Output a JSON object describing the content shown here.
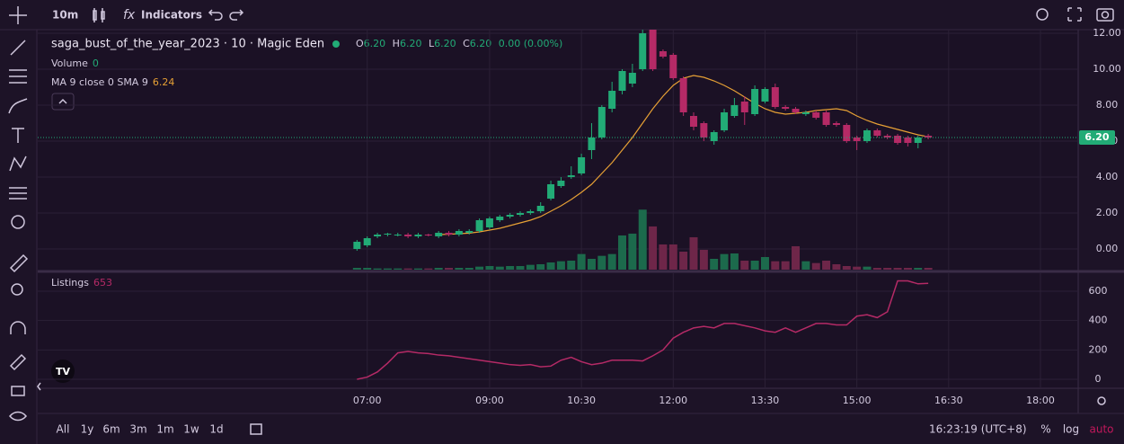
{
  "toolbar": {
    "interval": "10m",
    "indicators": "Indicators"
  },
  "legend": {
    "symbol": "saga_bust_of_the_year_2023 · 10 · Magic Eden",
    "ohlc": [
      {
        "key": "O",
        "value": "6.20"
      },
      {
        "key": "H",
        "value": "6.20"
      },
      {
        "key": "L",
        "value": "6.20"
      },
      {
        "key": "C",
        "value": "6.20"
      }
    ],
    "change": "0.00 (0.00%)",
    "volume_label": "Volume",
    "volume_value": "0",
    "ma_label": "MA 9 close 0 SMA 9",
    "ma_value": "6.24"
  },
  "chart_data": [
    {
      "type": "candlestick",
      "x": [
        410,
        420,
        430,
        440,
        450,
        460,
        470,
        480,
        490,
        500,
        510,
        520,
        530,
        540,
        550,
        560,
        570,
        580,
        590,
        600,
        610,
        620,
        630,
        640,
        650,
        660,
        670,
        680,
        690,
        700,
        710,
        720,
        730,
        740,
        750,
        760,
        770,
        780,
        790,
        800,
        810,
        820,
        830,
        840,
        850,
        860,
        870,
        880,
        890,
        900,
        910,
        920,
        930,
        940,
        950,
        960,
        970
      ],
      "open": [
        0.0,
        0.2,
        0.7,
        0.8,
        0.8,
        0.8,
        0.7,
        0.8,
        0.7,
        0.9,
        0.8,
        0.9,
        1.0,
        1.2,
        1.6,
        1.8,
        1.9,
        2.0,
        2.1,
        2.8,
        3.5,
        4.0,
        4.2,
        5.5,
        6.2,
        7.8,
        8.8,
        9.2,
        10.0,
        12.2,
        11.0,
        10.8,
        9.5,
        7.4,
        7.0,
        6.0,
        6.6,
        7.4,
        8.2,
        7.5,
        8.2,
        9.0,
        7.9,
        7.8,
        7.5,
        7.6,
        7.6,
        7.0,
        6.9,
        6.2,
        6.0,
        6.6,
        6.3,
        6.3,
        6.2,
        5.9,
        6.3
      ],
      "high": [
        0.5,
        0.7,
        0.9,
        0.9,
        0.9,
        0.9,
        0.9,
        0.85,
        1.0,
        1.0,
        1.1,
        1.1,
        1.7,
        1.8,
        1.9,
        2.0,
        2.1,
        2.2,
        2.6,
        3.8,
        4.0,
        4.6,
        5.3,
        7.0,
        8.0,
        9.3,
        10.0,
        10.3,
        12.2,
        12.2,
        11.1,
        10.9,
        9.6,
        7.6,
        7.1,
        6.6,
        7.8,
        8.4,
        8.5,
        9.1,
        9.0,
        9.2,
        8.0,
        7.9,
        7.7,
        7.7,
        7.7,
        7.1,
        7.0,
        6.3,
        6.7,
        6.7,
        6.4,
        6.4,
        6.3,
        6.3,
        6.4
      ],
      "low": [
        -0.1,
        0.1,
        0.6,
        0.7,
        0.7,
        0.6,
        0.6,
        0.7,
        0.6,
        0.7,
        0.7,
        0.8,
        0.9,
        1.1,
        1.5,
        1.7,
        1.8,
        1.9,
        2.0,
        2.7,
        3.4,
        3.9,
        4.1,
        5.0,
        6.1,
        7.6,
        8.6,
        9.0,
        9.9,
        9.9,
        10.6,
        9.4,
        7.4,
        6.6,
        6.0,
        5.8,
        6.5,
        7.3,
        6.9,
        7.4,
        8.1,
        7.8,
        7.7,
        7.5,
        7.4,
        7.2,
        6.8,
        6.8,
        5.9,
        5.5,
        5.9,
        6.2,
        6.1,
        5.8,
        5.7,
        5.6,
        6.1
      ],
      "close": [
        0.4,
        0.6,
        0.8,
        0.85,
        0.8,
        0.7,
        0.8,
        0.75,
        0.9,
        0.8,
        1.0,
        1.0,
        1.6,
        1.7,
        1.8,
        1.9,
        2.0,
        2.1,
        2.4,
        3.6,
        3.8,
        4.1,
        5.1,
        6.2,
        7.9,
        8.8,
        9.9,
        9.8,
        12.0,
        10.0,
        10.7,
        9.5,
        7.6,
        6.8,
        6.2,
        6.5,
        7.6,
        8.0,
        7.6,
        8.9,
        8.9,
        7.9,
        7.8,
        7.6,
        7.6,
        7.3,
        6.9,
        6.9,
        6.0,
        6.0,
        6.6,
        6.3,
        6.2,
        5.9,
        5.9,
        6.2,
        6.2
      ],
      "volume": [
        3,
        3,
        2,
        2,
        2,
        2,
        2,
        2,
        3,
        3,
        3,
        3,
        5,
        6,
        5,
        6,
        6,
        8,
        9,
        12,
        14,
        15,
        26,
        18,
        23,
        26,
        57,
        60,
        100,
        72,
        42,
        42,
        30,
        54,
        33,
        18,
        26,
        27,
        15,
        15,
        21,
        14,
        14,
        39,
        14,
        11,
        15,
        9,
        6,
        5,
        5,
        3,
        3,
        3,
        3,
        3,
        3
      ],
      "ma": [
        null,
        null,
        null,
        null,
        null,
        null,
        null,
        null,
        0.8,
        0.82,
        0.85,
        0.88,
        0.95,
        1.05,
        1.15,
        1.3,
        1.45,
        1.6,
        1.8,
        2.1,
        2.4,
        2.75,
        3.15,
        3.6,
        4.2,
        4.8,
        5.5,
        6.2,
        7.0,
        7.8,
        8.5,
        9.1,
        9.5,
        9.65,
        9.55,
        9.35,
        9.1,
        8.8,
        8.45,
        8.1,
        7.8,
        7.6,
        7.5,
        7.55,
        7.6,
        7.7,
        7.75,
        7.8,
        7.7,
        7.4,
        7.15,
        6.95,
        6.8,
        6.65,
        6.5,
        6.35,
        6.24
      ],
      "up_color": "#22ab76",
      "down_color": "#b52a66",
      "volume_up_color": "#1c6a4c",
      "volume_down_color": "#6e2649",
      "ma_color": "#e6a035",
      "ylim": [
        -1.15,
        12.2
      ],
      "volume_ylim": [
        0,
        400
      ],
      "xlim": [
        97,
        1117
      ],
      "yticks": [
        {
          "value": 0,
          "label": "0.00"
        },
        {
          "value": 2,
          "label": "2.00"
        },
        {
          "value": 4,
          "label": "4.00"
        },
        {
          "value": 6,
          "label": "6.00"
        },
        {
          "value": 8,
          "label": "8.00"
        },
        {
          "value": 10,
          "label": "10.00"
        },
        {
          "value": 12,
          "label": "12.00"
        }
      ],
      "xticks": [
        {
          "value": 420,
          "label": "07:00"
        },
        {
          "value": 540,
          "label": "09:00"
        },
        {
          "value": 630,
          "label": "10:30"
        },
        {
          "value": 720,
          "label": "12:00"
        },
        {
          "value": 810,
          "label": "13:30"
        },
        {
          "value": 900,
          "label": "15:00"
        },
        {
          "value": 990,
          "label": "16:30"
        },
        {
          "value": 1080,
          "label": "18:00"
        }
      ],
      "last_price": 6.2,
      "last_price_label": "6.20",
      "grid": true
    },
    {
      "type": "line",
      "title": "Listings",
      "legend_value": "653",
      "color": "#b52a66",
      "values": [
        0,
        15,
        50,
        110,
        180,
        190,
        180,
        175,
        165,
        160,
        150,
        140,
        130,
        120,
        110,
        100,
        95,
        100,
        85,
        90,
        130,
        150,
        120,
        100,
        110,
        130,
        130,
        130,
        125,
        160,
        200,
        280,
        320,
        350,
        360,
        350,
        380,
        380,
        365,
        350,
        330,
        320,
        350,
        320,
        350,
        380,
        380,
        370,
        370,
        430,
        440,
        420,
        460,
        670,
        670,
        650,
        653
      ],
      "ylim": [
        -61,
        716
      ],
      "yticks": [
        0,
        200,
        400,
        600
      ],
      "grid": true
    }
  ],
  "footer": {
    "ranges": [
      "All",
      "1y",
      "6m",
      "3m",
      "1m",
      "1w",
      "1d"
    ],
    "clock": "16:23:19 (UTC+8)",
    "percent": "%",
    "log": "log",
    "auto": "auto"
  }
}
